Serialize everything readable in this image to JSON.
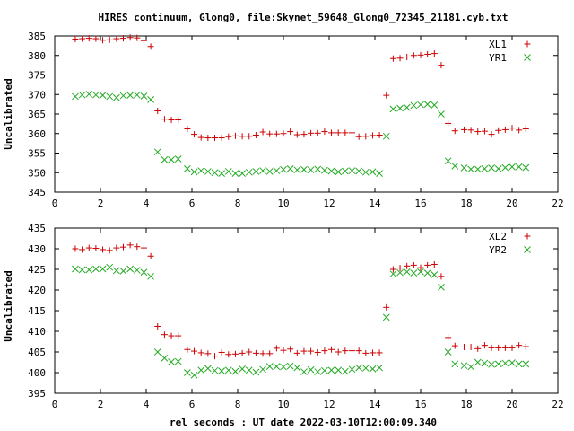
{
  "title": "HIRES continuum, Glong0, file:Skynet_59648_Glong0_72345_21181.cyb.txt",
  "xlabel": "rel seconds : UT date 2022-03-10T12:00:09.340",
  "colors": {
    "series1": "#cc0000",
    "series2": "#22aa22"
  },
  "chart_data": [
    {
      "type": "scatter",
      "ylabel": "Uncalibrated",
      "xlim": [
        0,
        22
      ],
      "ylim": [
        345,
        385
      ],
      "xticks": [
        0,
        2,
        4,
        6,
        8,
        10,
        12,
        14,
        16,
        18,
        20,
        22
      ],
      "yticks": [
        345,
        350,
        355,
        360,
        365,
        370,
        375,
        380,
        385
      ],
      "legend_position": "top-right",
      "series": [
        {
          "name": "XL1",
          "marker": "plus",
          "x": [
            0.9,
            1.2,
            1.5,
            1.8,
            2.1,
            2.4,
            2.7,
            3.0,
            3.3,
            3.6,
            3.9,
            4.2,
            4.5,
            4.8,
            5.1,
            5.4,
            5.8,
            6.1,
            6.4,
            6.7,
            7.0,
            7.3,
            7.6,
            7.9,
            8.2,
            8.5,
            8.8,
            9.1,
            9.4,
            9.7,
            10.0,
            10.3,
            10.6,
            10.9,
            11.2,
            11.5,
            11.8,
            12.1,
            12.4,
            12.7,
            13.0,
            13.3,
            13.6,
            13.9,
            14.2,
            14.5,
            14.8,
            15.1,
            15.4,
            15.7,
            16.0,
            16.3,
            16.6,
            16.9,
            17.2,
            17.5,
            17.9,
            18.2,
            18.5,
            18.8,
            19.1,
            19.4,
            19.7,
            20.0,
            20.3,
            20.6
          ],
          "y": [
            384.2,
            384.3,
            384.4,
            384.3,
            383.9,
            384.0,
            384.3,
            384.4,
            384.6,
            384.5,
            383.8,
            382.3,
            365.8,
            363.7,
            363.5,
            363.5,
            361.2,
            359.8,
            359.0,
            358.9,
            358.9,
            358.9,
            359.2,
            359.4,
            359.3,
            359.3,
            359.6,
            360.4,
            359.9,
            359.9,
            360.0,
            360.5,
            359.7,
            359.8,
            360.1,
            360.1,
            360.5,
            360.2,
            360.2,
            360.2,
            360.2,
            359.2,
            359.3,
            359.5,
            359.6,
            369.8,
            379.2,
            379.3,
            379.6,
            380.0,
            380.1,
            380.3,
            380.5,
            377.5,
            362.6,
            360.7,
            361.0,
            360.9,
            360.5,
            360.6,
            359.8,
            360.8,
            361.0,
            361.4,
            360.9,
            361.2
          ]
        },
        {
          "name": "YR1",
          "marker": "cross",
          "x": [
            0.9,
            1.2,
            1.5,
            1.8,
            2.1,
            2.4,
            2.7,
            3.0,
            3.3,
            3.6,
            3.9,
            4.2,
            4.5,
            4.8,
            5.1,
            5.4,
            5.8,
            6.1,
            6.4,
            6.7,
            7.0,
            7.3,
            7.6,
            7.9,
            8.2,
            8.5,
            8.8,
            9.1,
            9.4,
            9.7,
            10.0,
            10.3,
            10.6,
            10.9,
            11.2,
            11.5,
            11.8,
            12.1,
            12.4,
            12.7,
            13.0,
            13.3,
            13.6,
            13.9,
            14.2,
            14.5,
            14.8,
            15.1,
            15.4,
            15.7,
            16.0,
            16.3,
            16.6,
            16.9,
            17.2,
            17.5,
            17.9,
            18.2,
            18.5,
            18.8,
            19.1,
            19.4,
            19.7,
            20.0,
            20.3,
            20.6
          ],
          "y": [
            369.5,
            369.9,
            370.1,
            369.9,
            369.8,
            369.5,
            369.2,
            369.7,
            369.8,
            369.9,
            369.6,
            368.7,
            355.3,
            353.3,
            353.3,
            353.5,
            351.0,
            350.2,
            350.5,
            350.3,
            350.0,
            349.8,
            350.3,
            349.8,
            349.8,
            350.1,
            350.3,
            350.5,
            350.3,
            350.5,
            350.8,
            351.0,
            350.7,
            350.8,
            350.7,
            350.9,
            350.6,
            350.4,
            350.2,
            350.4,
            350.5,
            350.4,
            350.1,
            350.2,
            349.8,
            359.3,
            366.3,
            366.5,
            366.7,
            367.2,
            367.4,
            367.5,
            367.3,
            365.0,
            353.0,
            351.7,
            351.2,
            350.9,
            350.9,
            351.0,
            351.2,
            351.0,
            351.3,
            351.5,
            351.5,
            351.3
          ]
        }
      ]
    },
    {
      "type": "scatter",
      "ylabel": "Uncalibrated",
      "xlim": [
        0,
        22
      ],
      "ylim": [
        395,
        435
      ],
      "xticks": [
        0,
        2,
        4,
        6,
        8,
        10,
        12,
        14,
        16,
        18,
        20,
        22
      ],
      "yticks": [
        395,
        400,
        405,
        410,
        415,
        420,
        425,
        430,
        435
      ],
      "legend_position": "top-right",
      "series": [
        {
          "name": "XL2",
          "marker": "plus",
          "x": [
            0.9,
            1.2,
            1.5,
            1.8,
            2.1,
            2.4,
            2.7,
            3.0,
            3.3,
            3.6,
            3.9,
            4.2,
            4.5,
            4.8,
            5.1,
            5.4,
            5.8,
            6.1,
            6.4,
            6.7,
            7.0,
            7.3,
            7.6,
            7.9,
            8.2,
            8.5,
            8.8,
            9.1,
            9.4,
            9.7,
            10.0,
            10.3,
            10.6,
            10.9,
            11.2,
            11.5,
            11.8,
            12.1,
            12.4,
            12.7,
            13.0,
            13.3,
            13.6,
            13.9,
            14.2,
            14.5,
            14.8,
            15.1,
            15.4,
            15.7,
            16.0,
            16.3,
            16.6,
            16.9,
            17.2,
            17.5,
            17.9,
            18.2,
            18.5,
            18.8,
            19.1,
            19.4,
            19.7,
            20.0,
            20.3,
            20.6
          ],
          "y": [
            430.0,
            429.8,
            430.2,
            430.1,
            429.8,
            429.6,
            430.2,
            430.4,
            430.9,
            430.5,
            430.2,
            428.2,
            411.2,
            409.2,
            408.9,
            408.9,
            405.6,
            405.2,
            404.8,
            404.6,
            404.0,
            404.9,
            404.4,
            404.5,
            404.7,
            405.0,
            404.7,
            404.6,
            404.6,
            405.9,
            405.4,
            405.7,
            404.7,
            405.2,
            405.2,
            404.9,
            405.3,
            405.6,
            405.0,
            405.3,
            405.3,
            405.3,
            404.7,
            404.8,
            404.8,
            415.8,
            425.0,
            425.3,
            425.8,
            426.0,
            425.4,
            426.0,
            426.2,
            423.3,
            408.5,
            406.5,
            406.2,
            406.2,
            405.8,
            406.6,
            406.0,
            406.0,
            406.0,
            406.0,
            406.6,
            406.3
          ]
        },
        {
          "name": "YR2",
          "marker": "cross",
          "x": [
            0.9,
            1.2,
            1.5,
            1.8,
            2.1,
            2.4,
            2.7,
            3.0,
            3.3,
            3.6,
            3.9,
            4.2,
            4.5,
            4.8,
            5.1,
            5.4,
            5.8,
            6.1,
            6.4,
            6.7,
            7.0,
            7.3,
            7.6,
            7.9,
            8.2,
            8.5,
            8.8,
            9.1,
            9.4,
            9.7,
            10.0,
            10.3,
            10.6,
            10.9,
            11.2,
            11.5,
            11.8,
            12.1,
            12.4,
            12.7,
            13.0,
            13.3,
            13.6,
            13.9,
            14.2,
            14.5,
            14.8,
            15.1,
            15.4,
            15.7,
            16.0,
            16.3,
            16.6,
            16.9,
            17.2,
            17.5,
            17.9,
            18.2,
            18.5,
            18.8,
            19.1,
            19.4,
            19.7,
            20.0,
            20.3,
            20.6
          ],
          "y": [
            425.1,
            424.9,
            424.9,
            425.1,
            425.1,
            425.5,
            424.7,
            424.6,
            425.1,
            424.8,
            424.3,
            423.3,
            405.0,
            403.5,
            402.6,
            402.7,
            400.0,
            399.4,
            400.6,
            401.0,
            400.5,
            400.4,
            400.6,
            400.3,
            400.9,
            400.6,
            400.1,
            400.8,
            401.5,
            401.5,
            401.4,
            401.6,
            401.2,
            400.2,
            400.7,
            400.2,
            400.5,
            400.6,
            400.6,
            400.3,
            400.8,
            401.2,
            401.1,
            400.9,
            401.2,
            413.4,
            423.9,
            424.2,
            424.4,
            424.1,
            424.4,
            424.1,
            423.7,
            420.7,
            405.0,
            402.1,
            401.7,
            401.4,
            402.5,
            402.3,
            402.0,
            402.1,
            402.3,
            402.4,
            402.1,
            402.1
          ]
        }
      ]
    }
  ]
}
